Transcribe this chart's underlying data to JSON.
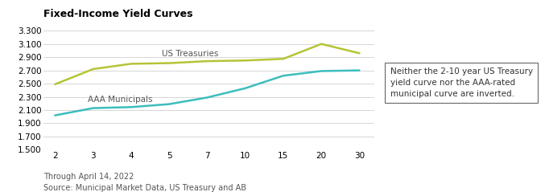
{
  "title": "Fixed-Income Yield Curves",
  "x_ticks": [
    2,
    3,
    4,
    5,
    7,
    10,
    15,
    20,
    30
  ],
  "x_positions": [
    0,
    1,
    2,
    3,
    4,
    5,
    6,
    7,
    8
  ],
  "us_treasuries": [
    2.49,
    2.72,
    2.8,
    2.81,
    2.84,
    2.85,
    2.875,
    3.1,
    2.96
  ],
  "aaa_municipals": [
    2.02,
    2.13,
    2.145,
    2.19,
    2.29,
    2.43,
    2.62,
    2.69,
    2.7
  ],
  "treasury_color": "#b5c435",
  "muni_color": "#3dbdbd",
  "ylim": [
    1.5,
    3.3
  ],
  "yticks": [
    1.5,
    1.7,
    1.9,
    2.1,
    2.3,
    2.5,
    2.7,
    2.9,
    3.1,
    3.3
  ],
  "treasury_label": "US Treasuries",
  "muni_label": "AAA Municipals",
  "annotation_text": "Neither the 2-10 year US Treasury\nyield curve nor the AAA-rated\nmunicipal curve are inverted.",
  "footnote1": "Through April 14, 2022",
  "footnote2": "Source: Municipal Market Data, US Treasury and AB",
  "background_color": "#ffffff",
  "grid_color": "#d0d0d0",
  "line_width": 1.8,
  "title_fontsize": 9,
  "tick_fontsize": 7.5,
  "label_fontsize": 7.5,
  "annot_fontsize": 7.5,
  "footnote_fontsize": 7
}
